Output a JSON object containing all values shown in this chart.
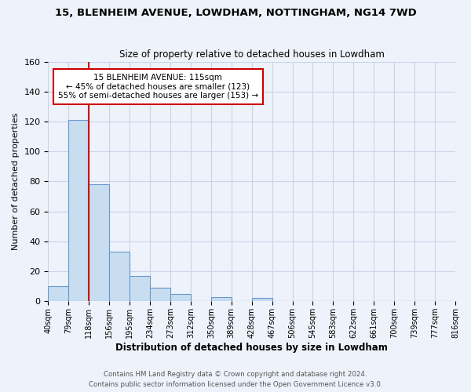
{
  "title": "15, BLENHEIM AVENUE, LOWDHAM, NOTTINGHAM, NG14 7WD",
  "subtitle": "Size of property relative to detached houses in Lowdham",
  "xlabel": "Distribution of detached houses by size in Lowdham",
  "ylabel": "Number of detached properties",
  "bar_values": [
    10,
    121,
    78,
    33,
    17,
    9,
    5,
    0,
    3,
    0,
    2,
    0,
    0,
    0,
    0,
    0,
    0,
    0,
    0,
    0
  ],
  "bin_labels": [
    "40sqm",
    "79sqm",
    "118sqm",
    "156sqm",
    "195sqm",
    "234sqm",
    "273sqm",
    "312sqm",
    "350sqm",
    "389sqm",
    "428sqm",
    "467sqm",
    "506sqm",
    "545sqm",
    "583sqm",
    "622sqm",
    "661sqm",
    "700sqm",
    "739sqm",
    "777sqm",
    "816sqm"
  ],
  "bar_color": "#c8ddf0",
  "bar_edge_color": "#6699cc",
  "property_line_color": "#cc0000",
  "annotation_title": "15 BLENHEIM AVENUE: 115sqm",
  "annotation_line1": "← 45% of detached houses are smaller (123)",
  "annotation_line2": "55% of semi-detached houses are larger (153) →",
  "annotation_box_color": "#ffffff",
  "annotation_box_edge": "#cc0000",
  "ylim": [
    0,
    160
  ],
  "yticks": [
    0,
    20,
    40,
    60,
    80,
    100,
    120,
    140,
    160
  ],
  "grid_color": "#c8d4e8",
  "background_color": "#eef2fa",
  "footer_line1": "Contains HM Land Registry data © Crown copyright and database right 2024.",
  "footer_line2": "Contains public sector information licensed under the Open Government Licence v3.0."
}
